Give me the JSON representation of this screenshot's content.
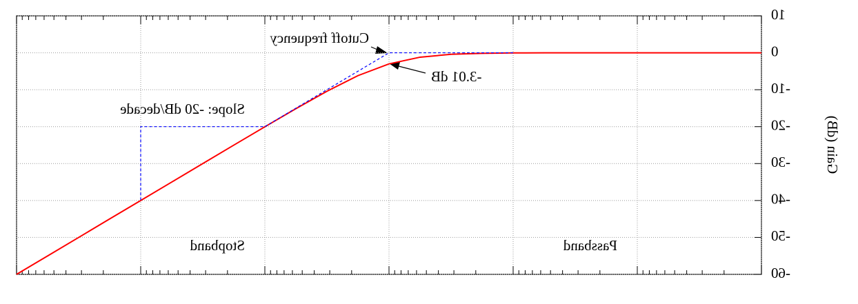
{
  "chart_data": {
    "type": "line",
    "ylabel": "Gain (dB)",
    "annotations": [
      "Cutoff frequency",
      "-3.01 dB",
      "Slope: -20 dB/decade",
      "Stopband",
      "Passband"
    ],
    "xscale": "log",
    "xlim": [
      0.001,
      1000
    ],
    "xticks": [
      0.001,
      0.01,
      0.1,
      1,
      10,
      100,
      1000
    ],
    "ylim": [
      -60,
      10
    ],
    "yticks": [
      -60,
      -50,
      -40,
      -30,
      -20,
      -10,
      0,
      10
    ],
    "grid": true,
    "mirrored": true,
    "series": [
      {
        "color": "#ff0000",
        "dashed": false,
        "x": [
          0.001,
          0.00178,
          0.00316,
          0.00562,
          0.01,
          0.0178,
          0.0316,
          0.0562,
          0.1,
          0.178,
          0.316,
          0.562,
          1,
          1.78,
          3.16,
          5.62,
          10,
          17.8,
          31.6,
          56.2,
          100,
          178,
          316,
          562,
          1000
        ],
        "values": [
          0,
          0,
          0,
          0,
          0,
          0,
          0,
          -0.01,
          -0.04,
          -0.14,
          -0.41,
          -1.19,
          -3.01,
          -6.19,
          -10.41,
          -15.14,
          -20.04,
          -25.01,
          -30,
          -35,
          -40,
          -45,
          -50,
          -55,
          -60
        ]
      },
      {
        "color": "#0000ff",
        "dashed": true,
        "x": [
          0.1,
          1,
          10,
          100,
          100
        ],
        "values": [
          0,
          0,
          -20,
          -20,
          -40
        ]
      }
    ]
  }
}
